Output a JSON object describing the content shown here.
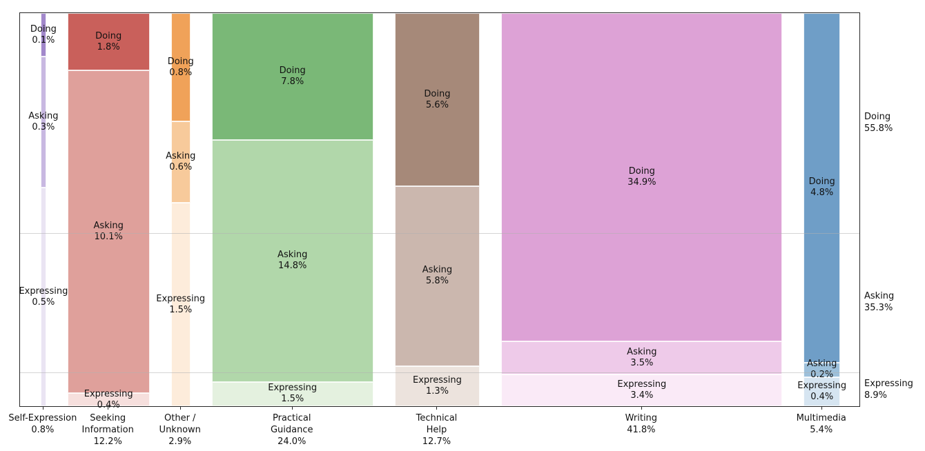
{
  "chart_data": {
    "type": "mosaic",
    "title": "",
    "xlabel": "",
    "ylabel": "",
    "grid": "horizontal-faint",
    "legend_position": "right-margin",
    "row_categories": [
      "Doing",
      "Asking",
      "Expressing"
    ],
    "row_totals": [
      {
        "label": "Doing",
        "value": 55.8,
        "label_lines": [
          "Doing",
          "55.8%"
        ]
      },
      {
        "label": "Asking",
        "value": 35.3,
        "label_lines": [
          "Asking",
          "35.3%"
        ]
      },
      {
        "label": "Expressing",
        "value": 8.9,
        "label_lines": [
          "Expressing",
          "8.9%"
        ]
      }
    ],
    "columns": [
      {
        "label": "Self-Expression",
        "total": 0.8,
        "axis_label_lines": [
          "Self-Expression",
          "0.8%"
        ],
        "segments": [
          {
            "row": "Doing",
            "value": 0.1,
            "label_lines": [
              "Doing",
              "0.1%"
            ],
            "color": "#a288cb"
          },
          {
            "row": "Asking",
            "value": 0.3,
            "label_lines": [
              "Asking",
              "0.3%"
            ],
            "color": "#c8b8e1"
          },
          {
            "row": "Expressing",
            "value": 0.5,
            "label_lines": [
              "Expressing",
              "0.5%"
            ],
            "color": "#eae4f3"
          }
        ]
      },
      {
        "label": "Seeking Information",
        "total": 12.2,
        "axis_label_lines": [
          "Seeking",
          "Information",
          "12.2%"
        ],
        "segments": [
          {
            "row": "Doing",
            "value": 1.8,
            "label_lines": [
              "Doing",
              "1.8%"
            ],
            "color": "#c9605b"
          },
          {
            "row": "Asking",
            "value": 10.1,
            "label_lines": [
              "Asking",
              "10.1%"
            ],
            "color": "#dfa09b"
          },
          {
            "row": "Expressing",
            "value": 0.4,
            "label_lines": [
              "Expressing",
              "0.4%"
            ],
            "color": "#f6dfdd"
          }
        ]
      },
      {
        "label": "Other / Unknown",
        "total": 2.9,
        "axis_label_lines": [
          "Other /",
          "Unknown",
          "2.9%"
        ],
        "segments": [
          {
            "row": "Doing",
            "value": 0.8,
            "label_lines": [
              "Doing",
              "0.8%"
            ],
            "color": "#f0a259"
          },
          {
            "row": "Asking",
            "value": 0.6,
            "label_lines": [
              "Asking",
              "0.6%"
            ],
            "color": "#f7ca9b"
          },
          {
            "row": "Expressing",
            "value": 1.5,
            "label_lines": [
              "Expressing",
              "1.5%"
            ],
            "color": "#fdecdb"
          }
        ]
      },
      {
        "label": "Practical Guidance",
        "total": 24.0,
        "axis_label_lines": [
          "Practical",
          "Guidance",
          "24.0%"
        ],
        "segments": [
          {
            "row": "Doing",
            "value": 7.8,
            "label_lines": [
              "Doing",
              "7.8%"
            ],
            "color": "#7ab877"
          },
          {
            "row": "Asking",
            "value": 14.8,
            "label_lines": [
              "Asking",
              "14.8%"
            ],
            "color": "#b1d7aa"
          },
          {
            "row": "Expressing",
            "value": 1.5,
            "label_lines": [
              "Expressing",
              "1.5%"
            ],
            "color": "#e4f1df"
          }
        ]
      },
      {
        "label": "Technical Help",
        "total": 12.7,
        "axis_label_lines": [
          "Technical",
          "Help",
          "12.7%"
        ],
        "segments": [
          {
            "row": "Doing",
            "value": 5.6,
            "label_lines": [
              "Doing",
              "5.6%"
            ],
            "color": "#a68979"
          },
          {
            "row": "Asking",
            "value": 5.8,
            "label_lines": [
              "Asking",
              "5.8%"
            ],
            "color": "#cbb7ae"
          },
          {
            "row": "Expressing",
            "value": 1.3,
            "label_lines": [
              "Expressing",
              "1.3%"
            ],
            "color": "#ece3dd"
          }
        ]
      },
      {
        "label": "Writing",
        "total": 41.8,
        "axis_label_lines": [
          "Writing",
          "41.8%"
        ],
        "segments": [
          {
            "row": "Doing",
            "value": 34.9,
            "label_lines": [
              "Doing",
              "34.9%"
            ],
            "color": "#dda2d6"
          },
          {
            "row": "Asking",
            "value": 3.5,
            "label_lines": [
              "Asking",
              "3.5%"
            ],
            "color": "#eecae9"
          },
          {
            "row": "Expressing",
            "value": 3.4,
            "label_lines": [
              "Expressing",
              "3.4%"
            ],
            "color": "#faeaf7"
          }
        ]
      },
      {
        "label": "Multimedia",
        "total": 5.4,
        "axis_label_lines": [
          "Multimedia",
          "5.4%"
        ],
        "segments": [
          {
            "row": "Doing",
            "value": 4.8,
            "label_lines": [
              "Doing",
              "4.8%"
            ],
            "color": "#6f9ec7"
          },
          {
            "row": "Asking",
            "value": 0.2,
            "label_lines": [
              "Asking",
              "0.2%"
            ],
            "color": "#9cc0db"
          },
          {
            "row": "Expressing",
            "value": 0.4,
            "label_lines": [
              "Expressing",
              "0.4%"
            ],
            "color": "#d6e5f1"
          }
        ]
      }
    ],
    "colors": {
      "spine": "#262626",
      "gridline": "#b0b0b0",
      "background": "#ffffff",
      "text": "#111111"
    }
  }
}
